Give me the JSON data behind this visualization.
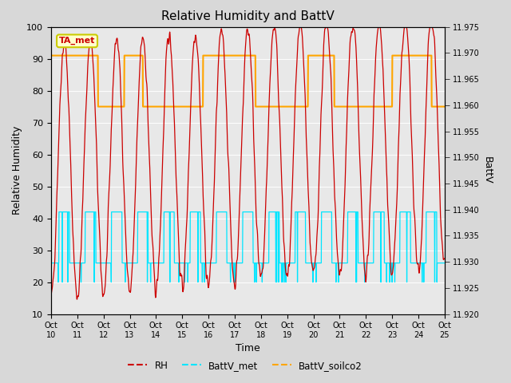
{
  "title": "Relative Humidity and BattV",
  "xlabel": "Time",
  "ylabel_left": "Relative Humidity",
  "ylabel_right": "BattV",
  "x_tick_labels": [
    "Oct 10",
    "Oct 11",
    "Oct 12",
    "Oct 13",
    "Oct 14",
    "Oct 15",
    "Oct 16",
    "Oct 17",
    "Oct 18",
    "Oct 19",
    "Oct 20",
    "Oct 21",
    "Oct 22",
    "Oct 23",
    "Oct 24",
    "Oct 25"
  ],
  "ylim_left": [
    10,
    100
  ],
  "ylim_right": [
    11.92,
    11.975
  ],
  "yticks_left": [
    10,
    20,
    30,
    40,
    50,
    60,
    70,
    80,
    90,
    100
  ],
  "yticks_right": [
    11.92,
    11.925,
    11.93,
    11.935,
    11.94,
    11.945,
    11.95,
    11.955,
    11.96,
    11.965,
    11.97,
    11.975
  ],
  "bg_color": "#d8d8d8",
  "plot_bg_color": "#e8e8e8",
  "rh_color": "#cc0000",
  "battv_met_color": "#00e5ff",
  "battv_soilco2_color": "#ffa500",
  "annotation_text": "TA_met",
  "annotation_color": "#cc0000",
  "annotation_bg": "#ffffcc",
  "annotation_border": "#cccc00",
  "n_days": 15,
  "pts_per_day": 96
}
